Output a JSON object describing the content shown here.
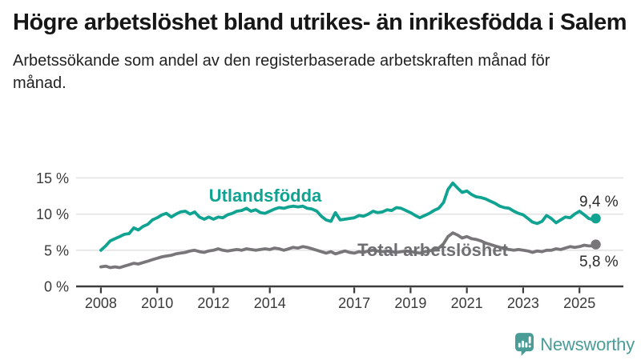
{
  "title": "Högre arbetslöshet bland utrikes- än inrikesfödda i Salem",
  "subtitle": "Arbetssökande som andel av den registerbaserade arbetskraften månad för månad.",
  "branding": {
    "logo_text": "Newsworthy",
    "logo_icon": "speech-bubble-with-bar-chart-and-exclamation",
    "color": "#4a9c97"
  },
  "colors": {
    "foreign_born_line": "#10a391",
    "total_line": "#787678",
    "total_label": "#6f6f73",
    "gridline": "#e3e3e3",
    "axis": "#3c3c3c",
    "annotation": "#2b2b2b"
  },
  "chart_data": {
    "type": "line",
    "title": "Högre arbetslöshet bland utrikes- än inrikesfödda i Salem",
    "subtitle": "Arbetssökande som andel av den registerbaserade arbetskraften månad för månad.",
    "xlabel": "",
    "ylabel": "",
    "grid": "horizontal",
    "legend_position": "inline-labels",
    "x_axis": {
      "unit": "year",
      "ticks": [
        2008,
        2010,
        2012,
        2014,
        2017,
        2019,
        2021,
        2023,
        2025
      ],
      "range": [
        2007.12,
        2026.56
      ]
    },
    "y_axis": {
      "unit": "%",
      "ticks": [
        "0 %",
        "5 %",
        "10 %",
        "15 %"
      ],
      "tick_values": [
        0,
        5,
        10,
        15
      ],
      "range": [
        0,
        16.6
      ]
    },
    "series": [
      {
        "name": "Utlandsfödda",
        "color": "#10a391",
        "end_label": "9,4 %",
        "end_value": 9.4,
        "points": [
          [
            2008.0,
            5.0
          ],
          [
            2008.17,
            5.6
          ],
          [
            2008.33,
            6.3
          ],
          [
            2008.5,
            6.6
          ],
          [
            2008.67,
            6.9
          ],
          [
            2008.83,
            7.2
          ],
          [
            2009.0,
            7.3
          ],
          [
            2009.17,
            8.1
          ],
          [
            2009.33,
            7.8
          ],
          [
            2009.5,
            8.3
          ],
          [
            2009.67,
            8.6
          ],
          [
            2009.83,
            9.2
          ],
          [
            2010.0,
            9.5
          ],
          [
            2010.17,
            9.9
          ],
          [
            2010.33,
            10.1
          ],
          [
            2010.5,
            9.6
          ],
          [
            2010.67,
            10.0
          ],
          [
            2010.83,
            10.3
          ],
          [
            2011.0,
            10.4
          ],
          [
            2011.17,
            10.0
          ],
          [
            2011.33,
            10.3
          ],
          [
            2011.5,
            9.6
          ],
          [
            2011.67,
            9.3
          ],
          [
            2011.83,
            9.6
          ],
          [
            2012.0,
            9.3
          ],
          [
            2012.17,
            9.6
          ],
          [
            2012.33,
            9.5
          ],
          [
            2012.5,
            9.9
          ],
          [
            2012.67,
            10.1
          ],
          [
            2012.83,
            10.4
          ],
          [
            2013.0,
            10.5
          ],
          [
            2013.17,
            10.8
          ],
          [
            2013.33,
            10.4
          ],
          [
            2013.5,
            10.6
          ],
          [
            2013.67,
            10.2
          ],
          [
            2013.83,
            10.1
          ],
          [
            2014.0,
            10.4
          ],
          [
            2014.17,
            10.7
          ],
          [
            2014.33,
            10.9
          ],
          [
            2014.5,
            10.8
          ],
          [
            2014.67,
            11.0
          ],
          [
            2014.83,
            11.1
          ],
          [
            2015.0,
            11.0
          ],
          [
            2015.17,
            11.1
          ],
          [
            2015.33,
            10.8
          ],
          [
            2015.5,
            10.7
          ],
          [
            2015.67,
            10.4
          ],
          [
            2015.83,
            9.7
          ],
          [
            2016.0,
            9.2
          ],
          [
            2016.17,
            9.0
          ],
          [
            2016.33,
            10.2
          ],
          [
            2016.5,
            9.2
          ],
          [
            2016.67,
            9.3
          ],
          [
            2016.83,
            9.4
          ],
          [
            2017.0,
            9.5
          ],
          [
            2017.17,
            9.8
          ],
          [
            2017.33,
            9.7
          ],
          [
            2017.5,
            10.0
          ],
          [
            2017.67,
            10.4
          ],
          [
            2017.83,
            10.2
          ],
          [
            2018.0,
            10.3
          ],
          [
            2018.17,
            10.6
          ],
          [
            2018.33,
            10.5
          ],
          [
            2018.5,
            10.9
          ],
          [
            2018.67,
            10.8
          ],
          [
            2018.83,
            10.5
          ],
          [
            2019.0,
            10.2
          ],
          [
            2019.17,
            9.8
          ],
          [
            2019.33,
            9.5
          ],
          [
            2019.5,
            9.8
          ],
          [
            2019.67,
            10.1
          ],
          [
            2019.83,
            10.5
          ],
          [
            2020.0,
            10.8
          ],
          [
            2020.17,
            11.6
          ],
          [
            2020.33,
            13.4
          ],
          [
            2020.5,
            14.3
          ],
          [
            2020.67,
            13.6
          ],
          [
            2020.83,
            13.0
          ],
          [
            2021.0,
            13.2
          ],
          [
            2021.17,
            12.7
          ],
          [
            2021.33,
            12.4
          ],
          [
            2021.5,
            12.3
          ],
          [
            2021.67,
            12.1
          ],
          [
            2021.83,
            11.8
          ],
          [
            2022.0,
            11.5
          ],
          [
            2022.17,
            11.1
          ],
          [
            2022.33,
            10.9
          ],
          [
            2022.5,
            10.8
          ],
          [
            2022.67,
            10.4
          ],
          [
            2022.83,
            10.1
          ],
          [
            2023.0,
            9.9
          ],
          [
            2023.17,
            9.4
          ],
          [
            2023.33,
            8.9
          ],
          [
            2023.5,
            8.7
          ],
          [
            2023.67,
            9.0
          ],
          [
            2023.83,
            9.8
          ],
          [
            2024.0,
            9.4
          ],
          [
            2024.17,
            8.8
          ],
          [
            2024.33,
            9.2
          ],
          [
            2024.5,
            9.6
          ],
          [
            2024.67,
            9.5
          ],
          [
            2024.83,
            10.0
          ],
          [
            2025.0,
            10.4
          ],
          [
            2025.17,
            9.9
          ],
          [
            2025.33,
            9.4
          ],
          [
            2025.5,
            9.2
          ],
          [
            2025.58,
            9.4
          ]
        ]
      },
      {
        "name": "Total arbetslöshet",
        "color": "#787678",
        "end_label": "5,8 %",
        "end_value": 5.8,
        "points": [
          [
            2008.0,
            2.7
          ],
          [
            2008.17,
            2.8
          ],
          [
            2008.33,
            2.6
          ],
          [
            2008.5,
            2.7
          ],
          [
            2008.67,
            2.6
          ],
          [
            2008.83,
            2.8
          ],
          [
            2009.0,
            3.0
          ],
          [
            2009.17,
            3.2
          ],
          [
            2009.33,
            3.1
          ],
          [
            2009.5,
            3.3
          ],
          [
            2009.67,
            3.5
          ],
          [
            2009.83,
            3.7
          ],
          [
            2010.0,
            3.9
          ],
          [
            2010.17,
            4.1
          ],
          [
            2010.33,
            4.2
          ],
          [
            2010.5,
            4.3
          ],
          [
            2010.67,
            4.5
          ],
          [
            2010.83,
            4.6
          ],
          [
            2011.0,
            4.7
          ],
          [
            2011.17,
            4.9
          ],
          [
            2011.33,
            5.0
          ],
          [
            2011.5,
            4.8
          ],
          [
            2011.67,
            4.7
          ],
          [
            2011.83,
            4.9
          ],
          [
            2012.0,
            5.0
          ],
          [
            2012.17,
            5.2
          ],
          [
            2012.33,
            5.0
          ],
          [
            2012.5,
            4.9
          ],
          [
            2012.67,
            5.0
          ],
          [
            2012.83,
            5.1
          ],
          [
            2013.0,
            5.0
          ],
          [
            2013.17,
            5.2
          ],
          [
            2013.33,
            5.1
          ],
          [
            2013.5,
            5.0
          ],
          [
            2013.67,
            5.1
          ],
          [
            2013.83,
            5.2
          ],
          [
            2014.0,
            5.1
          ],
          [
            2014.17,
            5.3
          ],
          [
            2014.33,
            5.2
          ],
          [
            2014.5,
            5.0
          ],
          [
            2014.67,
            5.2
          ],
          [
            2014.83,
            5.4
          ],
          [
            2015.0,
            5.3
          ],
          [
            2015.17,
            5.5
          ],
          [
            2015.33,
            5.4
          ],
          [
            2015.5,
            5.2
          ],
          [
            2015.67,
            5.0
          ],
          [
            2015.83,
            4.8
          ],
          [
            2016.0,
            4.6
          ],
          [
            2016.17,
            4.8
          ],
          [
            2016.33,
            4.5
          ],
          [
            2016.5,
            4.7
          ],
          [
            2016.67,
            4.9
          ],
          [
            2016.83,
            4.7
          ],
          [
            2017.0,
            4.6
          ],
          [
            2017.17,
            4.8
          ],
          [
            2017.33,
            4.7
          ],
          [
            2017.5,
            4.9
          ],
          [
            2017.67,
            5.0
          ],
          [
            2017.83,
            4.9
          ],
          [
            2018.0,
            4.8
          ],
          [
            2018.17,
            4.9
          ],
          [
            2018.33,
            4.8
          ],
          [
            2018.5,
            4.7
          ],
          [
            2018.67,
            4.8
          ],
          [
            2018.83,
            4.9
          ],
          [
            2019.0,
            4.8
          ],
          [
            2019.17,
            4.7
          ],
          [
            2019.33,
            4.6
          ],
          [
            2019.5,
            4.8
          ],
          [
            2019.67,
            4.9
          ],
          [
            2019.83,
            5.1
          ],
          [
            2020.0,
            5.3
          ],
          [
            2020.17,
            5.9
          ],
          [
            2020.33,
            6.9
          ],
          [
            2020.5,
            7.4
          ],
          [
            2020.67,
            7.1
          ],
          [
            2020.83,
            6.7
          ],
          [
            2021.0,
            6.9
          ],
          [
            2021.17,
            6.6
          ],
          [
            2021.33,
            6.5
          ],
          [
            2021.5,
            6.3
          ],
          [
            2021.67,
            6.0
          ],
          [
            2021.83,
            5.8
          ],
          [
            2022.0,
            5.6
          ],
          [
            2022.17,
            5.4
          ],
          [
            2022.33,
            5.2
          ],
          [
            2022.5,
            5.1
          ],
          [
            2022.67,
            5.0
          ],
          [
            2022.83,
            5.1
          ],
          [
            2023.0,
            5.0
          ],
          [
            2023.17,
            4.9
          ],
          [
            2023.33,
            4.7
          ],
          [
            2023.5,
            4.9
          ],
          [
            2023.67,
            4.8
          ],
          [
            2023.83,
            5.0
          ],
          [
            2024.0,
            5.0
          ],
          [
            2024.17,
            5.2
          ],
          [
            2024.33,
            5.1
          ],
          [
            2024.5,
            5.3
          ],
          [
            2024.67,
            5.5
          ],
          [
            2024.83,
            5.4
          ],
          [
            2025.0,
            5.5
          ],
          [
            2025.17,
            5.7
          ],
          [
            2025.33,
            5.6
          ],
          [
            2025.5,
            5.6
          ],
          [
            2025.58,
            5.8
          ]
        ]
      }
    ]
  }
}
